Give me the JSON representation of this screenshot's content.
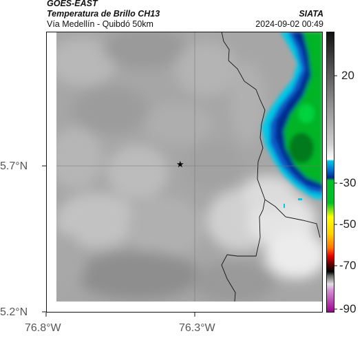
{
  "header": {
    "satellite": "GOES-EAST",
    "product": "Temperatura de Brillo CH13",
    "region": "Vía Medellín - Quibdó 50km",
    "agency": "SIATA",
    "datetime": "2024-09-02 00:49"
  },
  "map": {
    "lat_ticks": [
      "5.7°N",
      "5.2°N"
    ],
    "lon_ticks": [
      "76.8°W",
      "76.3°W"
    ],
    "marker": "star-icon"
  },
  "colorbar": {
    "ticks": [
      "20",
      "-30",
      "-50",
      "-70",
      "-90"
    ],
    "colors": {
      "grey_top": "#111111",
      "grey_mid": "#a8a8a8",
      "white": "#ffffff",
      "cyan": "#00c8e6",
      "blue": "#002a8c",
      "green": "#00c028",
      "yellow": "#ffff00",
      "red": "#e60000",
      "black": "#000000",
      "magenta": "#c800c8"
    }
  }
}
